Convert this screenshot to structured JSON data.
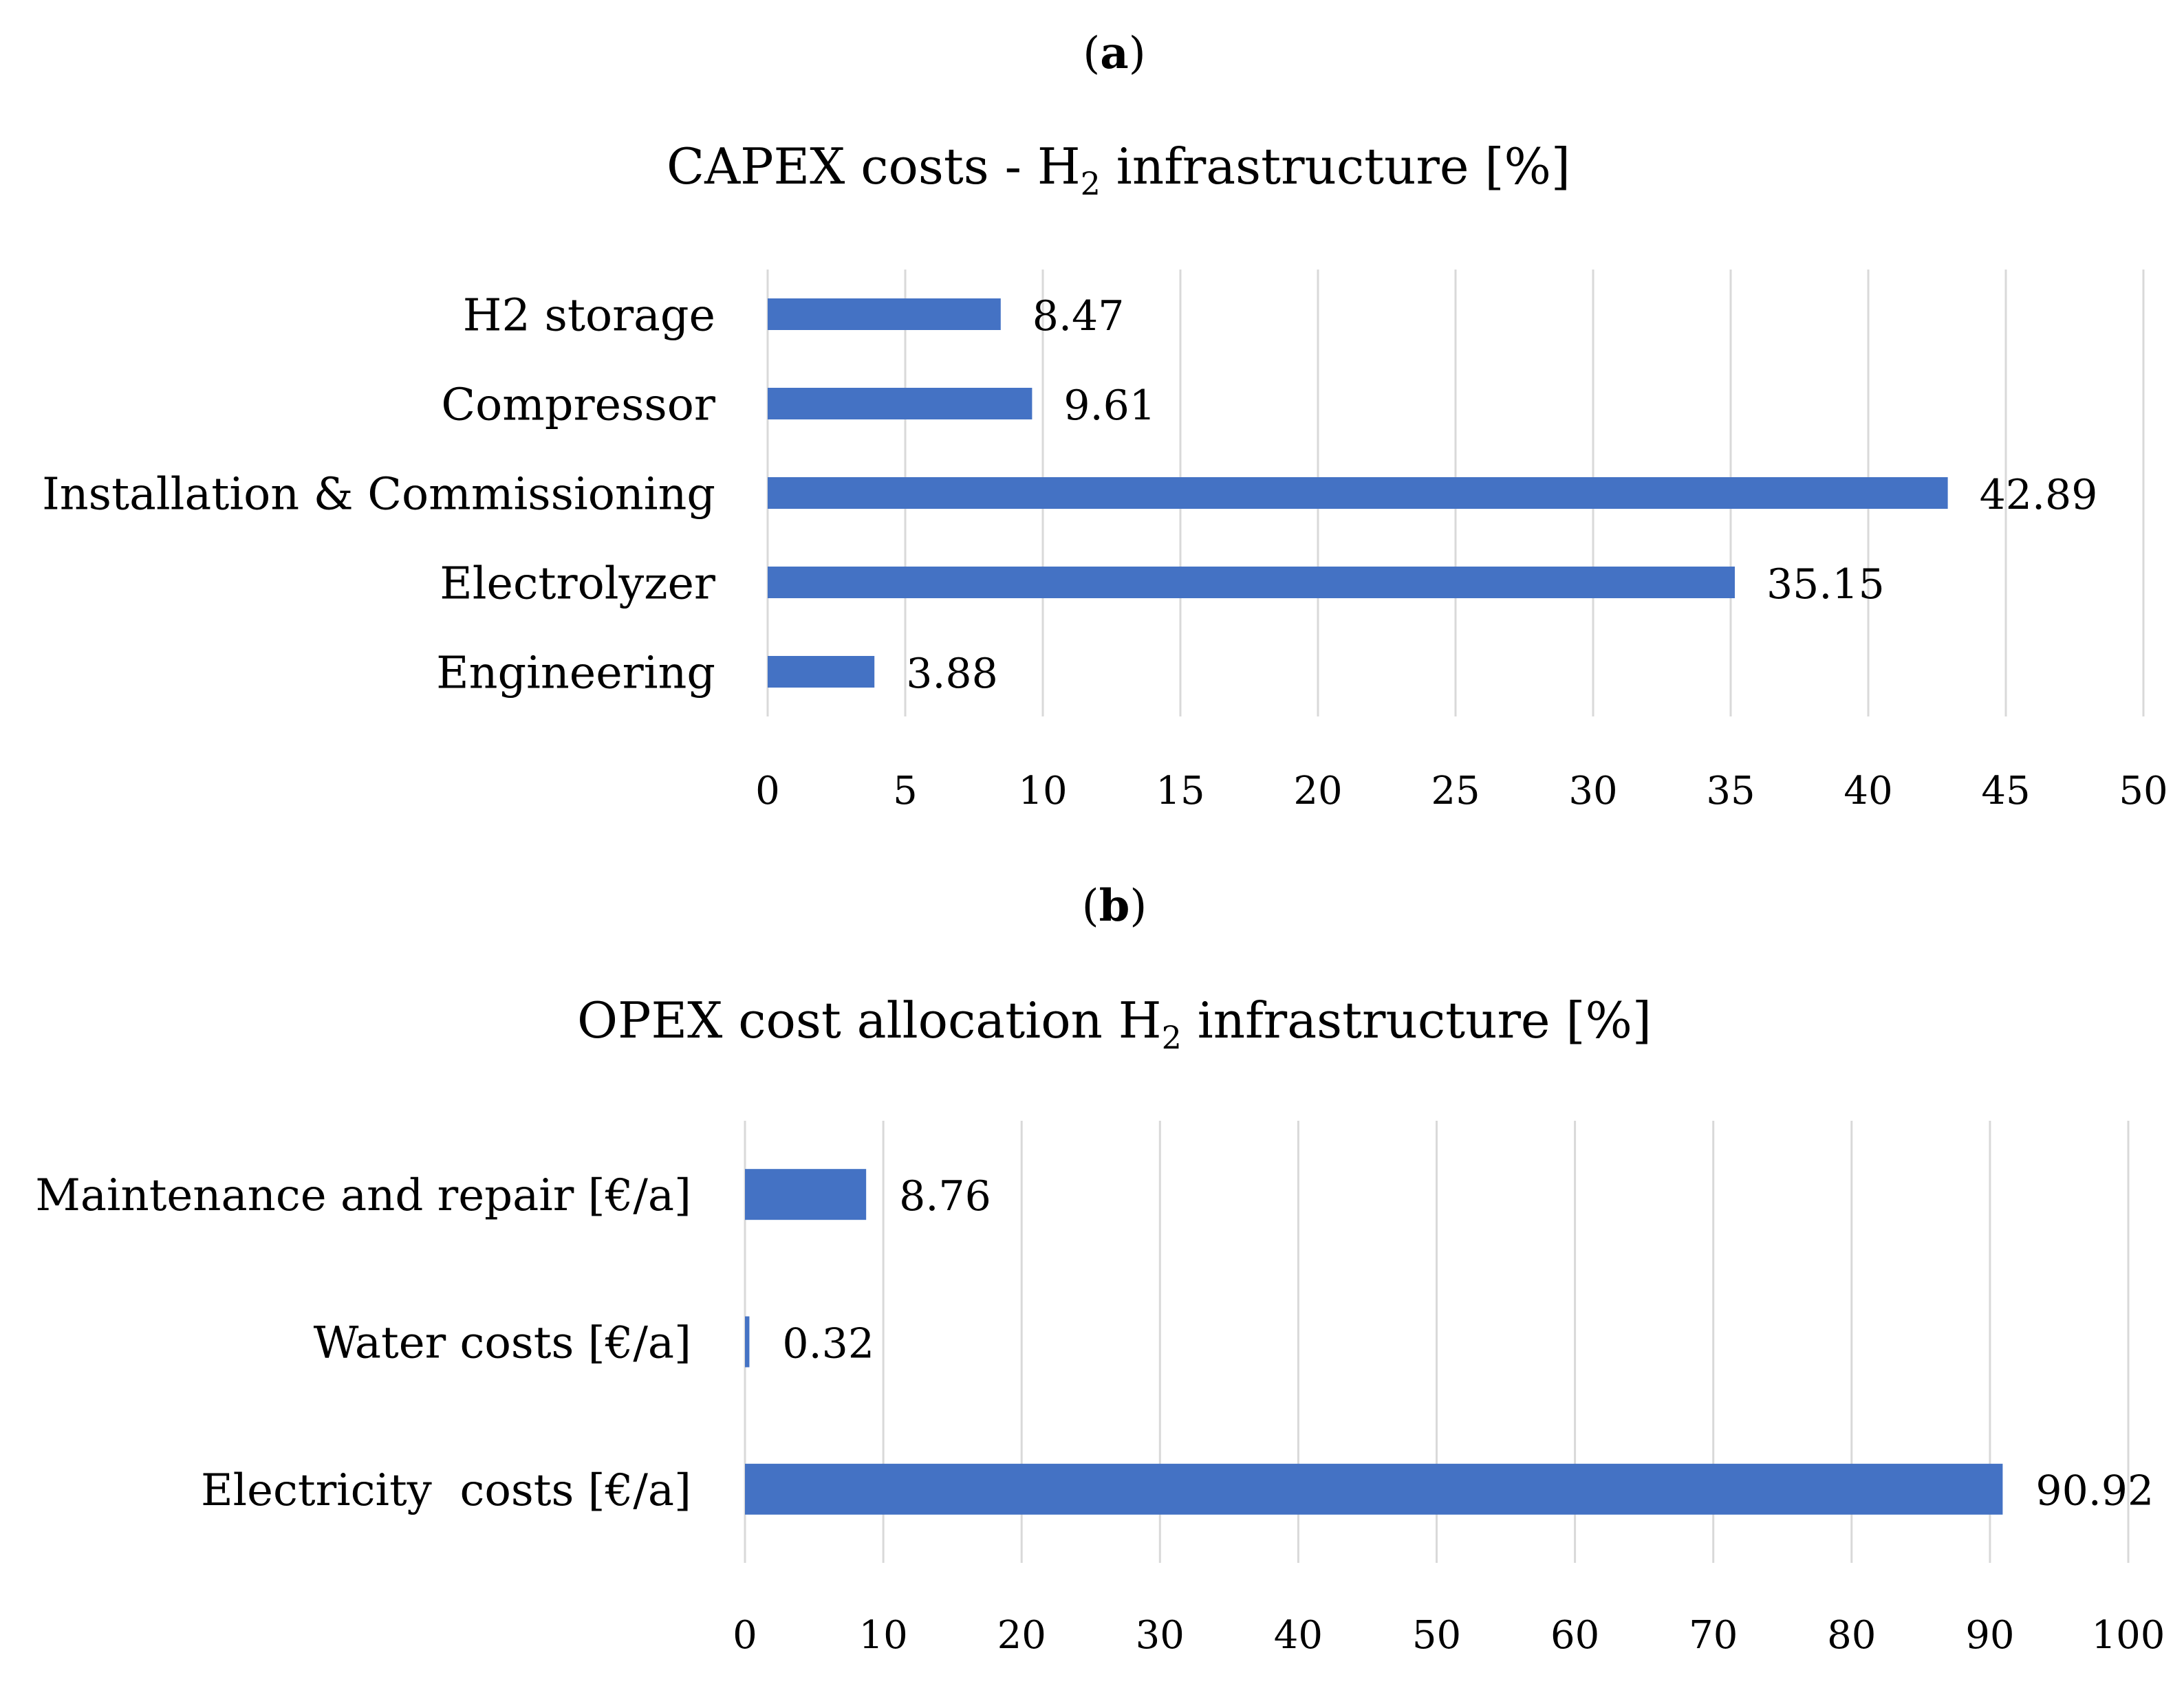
{
  "chart_data": [
    {
      "type": "bar",
      "panel_label": {
        "open": "(",
        "letter": "a",
        "close": ")"
      },
      "title": {
        "before": "CAPEX costs - H",
        "sub": "2",
        "after": " infrastructure [%]"
      },
      "categories": [
        "H2 storage",
        "Compressor",
        "Installation & Commissioning",
        "Electrolyzer",
        "Engineering"
      ],
      "values": [
        8.47,
        9.61,
        42.89,
        35.15,
        3.88
      ],
      "xlabel": "",
      "ylabel": "",
      "xlim": [
        0,
        50
      ],
      "xticks": [
        0,
        5,
        10,
        15,
        20,
        25,
        30,
        35,
        40,
        45,
        50
      ],
      "grid": true,
      "data_labels": true
    },
    {
      "type": "bar",
      "panel_label": {
        "open": "(",
        "letter": "b",
        "close": ")"
      },
      "title": {
        "before": "OPEX cost allocation H",
        "sub": "2",
        "after": " infrastructure [%]"
      },
      "categories": [
        "Maintenance and repair [€/a]",
        "Water costs [€/a]",
        "Electricity  costs [€/a]"
      ],
      "values": [
        8.76,
        0.32,
        90.92
      ],
      "xlabel": "",
      "ylabel": "",
      "xlim": [
        0,
        100
      ],
      "xticks": [
        0,
        10,
        20,
        30,
        40,
        50,
        60,
        70,
        80,
        90,
        100
      ],
      "grid": true,
      "data_labels": true
    }
  ],
  "colors": {
    "bar": "#4472C4",
    "grid": "#D9D9D9",
    "text": "#000000",
    "background": "#FFFFFF"
  }
}
